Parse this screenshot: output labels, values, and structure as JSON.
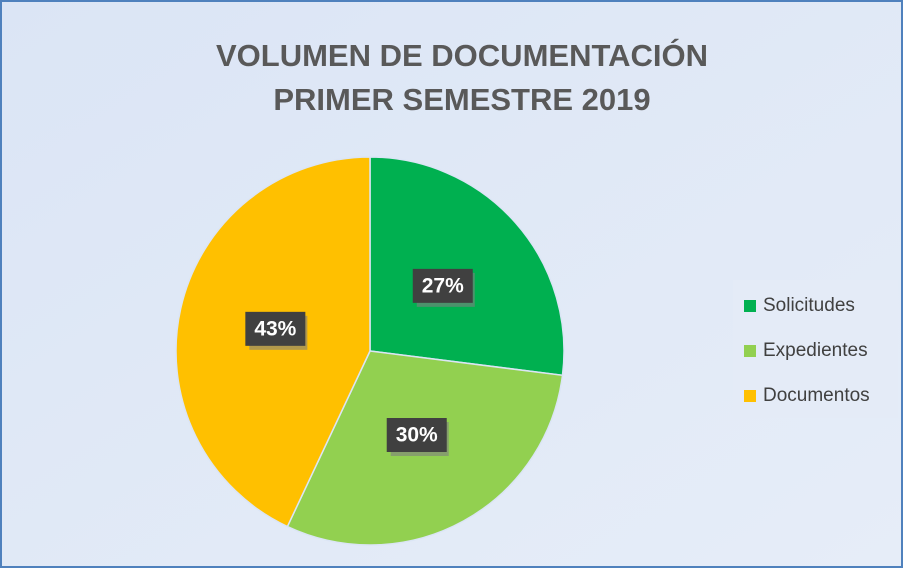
{
  "chart_data": {
    "type": "pie",
    "title": [
      "VOLUMEN DE DOCUMENTACIÓN",
      "PRIMER SEMESTRE 2019"
    ],
    "categories": [
      "Solicitudes",
      "Expedientes",
      "Documentos"
    ],
    "values": [
      27,
      30,
      43
    ],
    "value_labels": [
      "27%",
      "30%",
      "43%"
    ],
    "colors": [
      "#00b050",
      "#92d050",
      "#ffc000"
    ],
    "legend": "right"
  }
}
